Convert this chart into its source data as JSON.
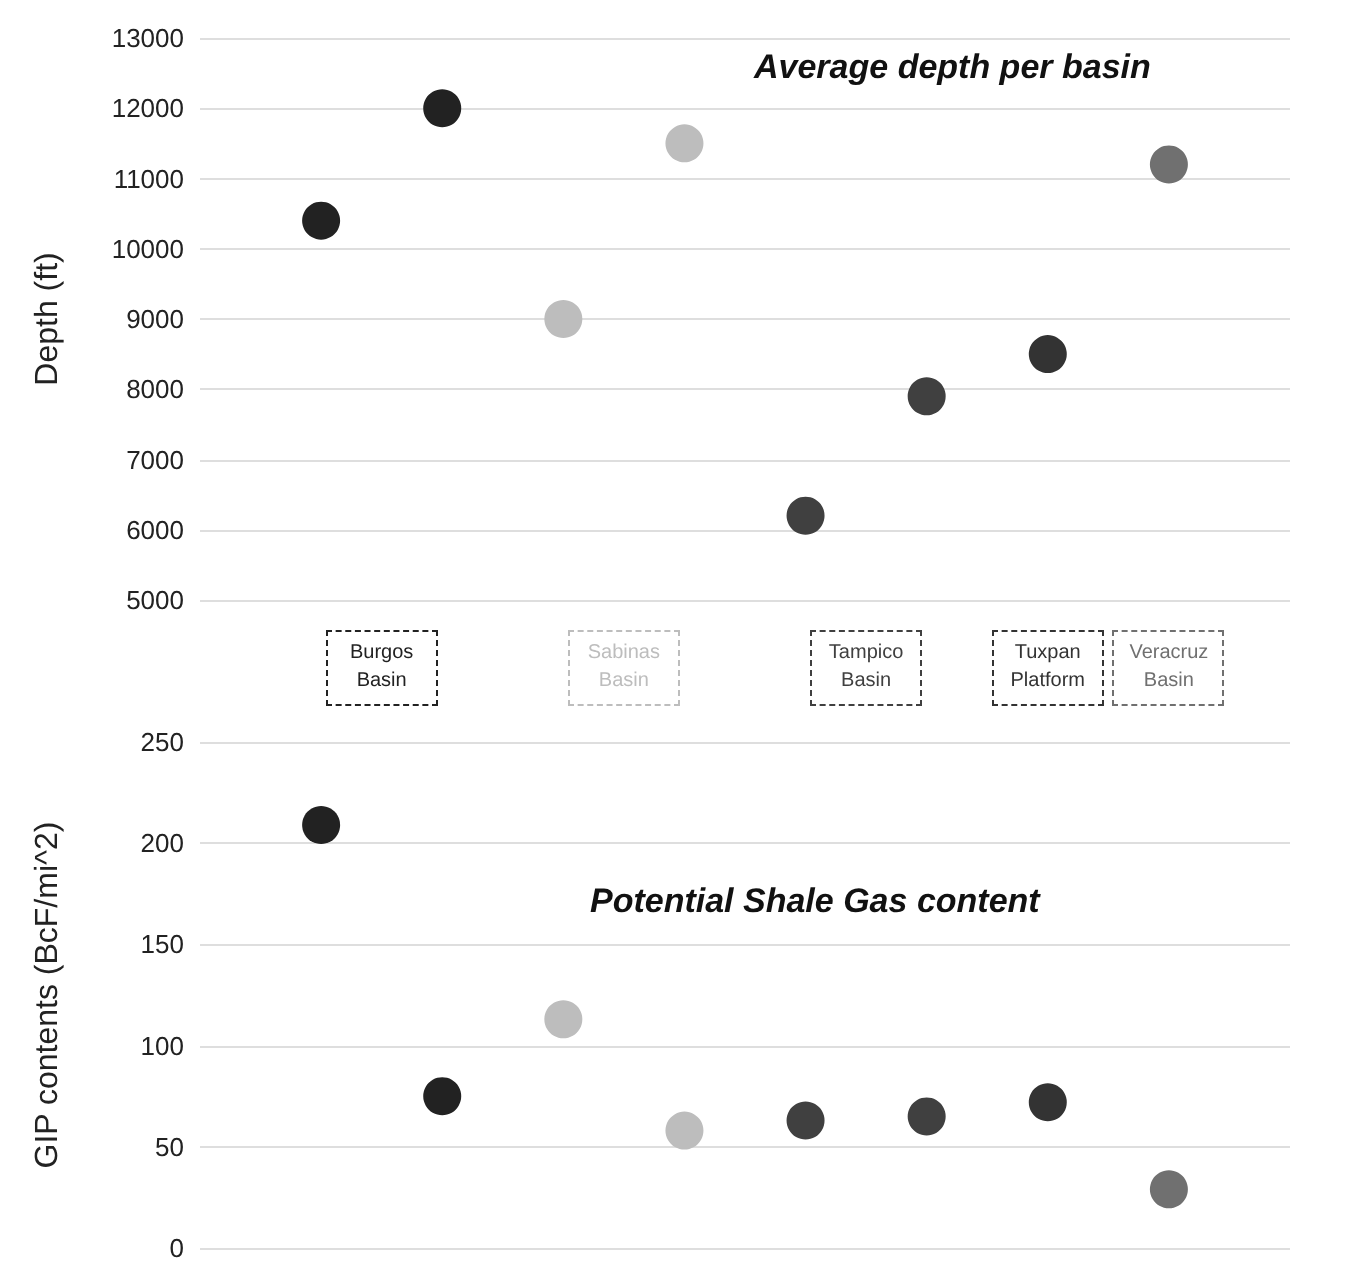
{
  "chart_data": [
    {
      "type": "scatter",
      "title": "Average depth per basin",
      "ylabel": "Depth (ft)",
      "categories": [
        null,
        null,
        null,
        null,
        null,
        null,
        null,
        null
      ],
      "ylim": [
        5000,
        13000
      ],
      "yticks": [
        5000,
        6000,
        7000,
        8000,
        9000,
        10000,
        11000,
        12000,
        13000
      ],
      "grid": "y",
      "marker": "circle",
      "legend": "bottom",
      "tick_labels": "y",
      "series": [
        {
          "name": "Burgos Basin",
          "color": "#222222",
          "values": [
            10400,
            12000,
            null,
            null,
            null,
            null,
            null,
            null
          ]
        },
        {
          "name": "Sabinas Basin",
          "color": "#bdbdbd",
          "values": [
            null,
            null,
            9000,
            11500,
            null,
            null,
            null,
            null
          ]
        },
        {
          "name": "Tampico Basin",
          "color": "#404040",
          "values": [
            null,
            null,
            null,
            null,
            6200,
            7900,
            null,
            null
          ]
        },
        {
          "name": "Tuxpan Platform",
          "color": "#333333",
          "values": [
            null,
            null,
            null,
            null,
            null,
            null,
            8500,
            null
          ]
        },
        {
          "name": "Veracruz Basin",
          "color": "#707070",
          "values": [
            null,
            null,
            null,
            null,
            null,
            null,
            null,
            11200
          ]
        }
      ]
    },
    {
      "type": "scatter",
      "title": "Potential Shale Gas content",
      "ylabel": "GIP contents (BcF/mi^2)",
      "categories": [
        null,
        null,
        null,
        null,
        null,
        null,
        null,
        null
      ],
      "ylim": [
        0,
        250
      ],
      "yticks": [
        0,
        50,
        100,
        150,
        200,
        250
      ],
      "grid": "y",
      "marker": "circle",
      "tick_labels": "y",
      "series": [
        {
          "color": "#222222",
          "values": [
            209,
            75,
            null,
            null,
            null,
            null,
            null,
            null
          ]
        },
        {
          "color": "#bdbdbd",
          "values": [
            null,
            null,
            113,
            58,
            null,
            null,
            null,
            null
          ]
        },
        {
          "color": "#404040",
          "values": [
            null,
            null,
            null,
            null,
            63,
            65,
            null,
            null
          ]
        },
        {
          "color": "#333333",
          "values": [
            null,
            null,
            null,
            null,
            null,
            null,
            72,
            null
          ]
        },
        {
          "color": "#707070",
          "values": [
            null,
            null,
            null,
            null,
            null,
            null,
            null,
            29
          ]
        }
      ]
    }
  ]
}
